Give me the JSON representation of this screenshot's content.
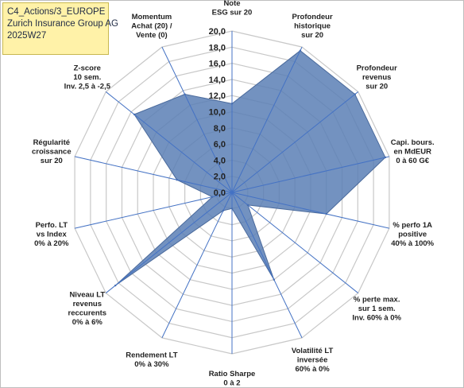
{
  "header": {
    "line1": "C4_Actions/3_EUROPE",
    "line2": "Zurich Insurance Group AG",
    "line3": "2025W27"
  },
  "chart_data": {
    "type": "radar",
    "rlim": [
      0,
      20
    ],
    "ticks": [
      "0,0",
      "2,0",
      "4,0",
      "6,0",
      "8,0",
      "10,0",
      "12,0",
      "14,0",
      "16,0",
      "18,0",
      "20,0"
    ],
    "grid": true,
    "axes": [
      {
        "label": [
          "Note",
          "ESG sur 20"
        ],
        "value": 11
      },
      {
        "label": [
          "Profondeur",
          "historique",
          "sur 20"
        ],
        "value": 19.5
      },
      {
        "label": [
          "Profondeur",
          "revenus",
          "sur 20"
        ],
        "value": 19.5
      },
      {
        "label": [
          "Capi. bours.",
          "en MdEUR",
          "0 à 60 G€"
        ],
        "value": 19.5
      },
      {
        "label": [
          "% perfo 1A",
          "positive",
          "40% à 100%"
        ],
        "value": 12
      },
      {
        "label": [
          "% perte max.",
          "sur 1 sem.",
          "Inv. 60% à 0%"
        ],
        "value": 2.5
      },
      {
        "label": [
          "Volatilité LT",
          "inversée",
          "60% à 0%"
        ],
        "value": 12
      },
      {
        "label": [
          "Ratio Sharpe",
          "0 à 2"
        ],
        "value": 2
      },
      {
        "label": [
          "Rendement LT",
          "0% à 30%"
        ],
        "value": 2.5
      },
      {
        "label": [
          "Niveau LT",
          "revenus",
          "reccurents",
          "0% à 6%"
        ],
        "value": 18.5
      },
      {
        "label": [
          "Perfo. LT",
          "vs Index",
          "0% à 20%"
        ],
        "value": 2.5
      },
      {
        "label": [
          "Régularité",
          "croissance",
          "sur 20"
        ],
        "value": 7
      },
      {
        "label": [
          "Z-score",
          "10 sem.",
          "Inv. 2,5 à -2,5"
        ],
        "value": 15.5
      },
      {
        "label": [
          "Momentum",
          "Achat (20) /",
          "Vente (0)"
        ],
        "value": 13.5
      }
    ],
    "colors": {
      "fill": "#5a7fb5",
      "stroke": "#4a6a9c",
      "grid": "#c8c8c8",
      "spoke": "#4472c4"
    }
  }
}
